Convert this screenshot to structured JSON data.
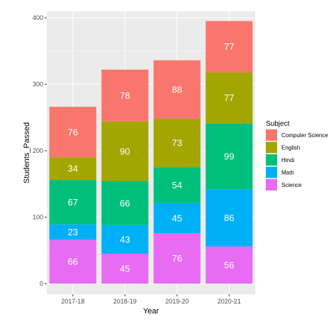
{
  "chart_data": {
    "type": "bar",
    "stacked": true,
    "categories": [
      "2017-18",
      "2018-19",
      "2019-20",
      "2020-21"
    ],
    "series": [
      {
        "name": "Science",
        "color": "#E76BF3",
        "values": [
          66,
          45,
          76,
          56
        ]
      },
      {
        "name": "Math",
        "color": "#00B0F6",
        "values": [
          23,
          43,
          45,
          86
        ]
      },
      {
        "name": "Hindi",
        "color": "#00BF7D",
        "values": [
          67,
          66,
          54,
          99
        ]
      },
      {
        "name": "English",
        "color": "#A3A500",
        "values": [
          34,
          90,
          73,
          77
        ]
      },
      {
        "name": "Computer Science",
        "color": "#F8766D",
        "values": [
          76,
          78,
          88,
          77
        ]
      }
    ],
    "legend_order": [
      "Computer Science",
      "English",
      "Hindi",
      "Math",
      "Science"
    ],
    "xlabel": "Year",
    "ylabel": "Students_Passed",
    "ylim": [
      0,
      415
    ],
    "yticks": [
      0,
      100,
      200,
      300,
      400
    ],
    "legend_title": "Subject",
    "legend_position": "right",
    "grid": true,
    "panel_background": "#EBEBEB"
  }
}
